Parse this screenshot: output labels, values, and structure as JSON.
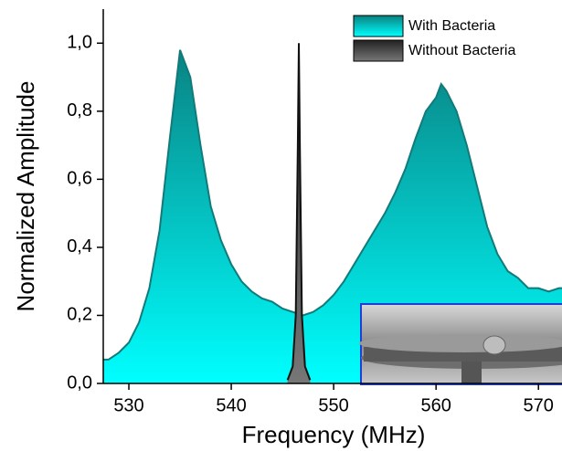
{
  "chart_data": {
    "type": "area",
    "xlabel": "Frequency (MHz)",
    "ylabel": "Normalized Amplitude",
    "xlim": [
      527.5,
      572.3
    ],
    "ylim": [
      0,
      1.1
    ],
    "xticks": [
      530,
      540,
      550,
      560,
      570
    ],
    "yticks": [
      {
        "value": 0,
        "label": "0,0"
      },
      {
        "value": 0.2,
        "label": "0,2"
      },
      {
        "value": 0.4,
        "label": "0,4"
      },
      {
        "value": 0.6,
        "label": "0,6"
      },
      {
        "value": 0.8,
        "label": "0,8"
      },
      {
        "value": 1,
        "label": "1,0"
      }
    ],
    "legend": "top-right",
    "series": [
      {
        "name": "With Bacteria",
        "color": "#137a7a",
        "gradient": [
          "#00ffff",
          "#0a8080"
        ],
        "x": [
          527.5,
          528,
          529,
          530,
          531,
          532,
          533,
          534,
          535,
          536,
          537,
          538,
          539,
          540,
          541,
          542,
          543,
          544,
          545,
          546,
          547,
          548,
          549,
          550,
          551,
          552,
          553,
          554,
          555,
          556,
          557,
          558,
          559,
          560,
          560.5,
          561,
          562,
          563,
          564,
          565,
          566,
          567,
          568,
          569,
          570,
          571,
          572,
          572.3
        ],
        "values": [
          0.07,
          0.07,
          0.09,
          0.12,
          0.18,
          0.28,
          0.45,
          0.72,
          0.98,
          0.9,
          0.7,
          0.52,
          0.42,
          0.35,
          0.3,
          0.27,
          0.25,
          0.24,
          0.22,
          0.21,
          0.2,
          0.21,
          0.23,
          0.26,
          0.3,
          0.35,
          0.4,
          0.45,
          0.5,
          0.56,
          0.63,
          0.72,
          0.8,
          0.84,
          0.88,
          0.86,
          0.8,
          0.7,
          0.58,
          0.46,
          0.38,
          0.33,
          0.31,
          0.28,
          0.28,
          0.27,
          0.28,
          0.28
        ]
      },
      {
        "name": "Without Bacteria",
        "color": "#111111",
        "gradient": [
          "#777777",
          "#222222"
        ],
        "x": [
          545.5,
          546,
          546.3,
          546.5,
          546.6,
          546.7,
          546.9,
          547.2,
          547.7
        ],
        "values": [
          0.01,
          0.05,
          0.2,
          0.7,
          1.0,
          0.7,
          0.2,
          0.05,
          0.01
        ]
      }
    ]
  }
}
